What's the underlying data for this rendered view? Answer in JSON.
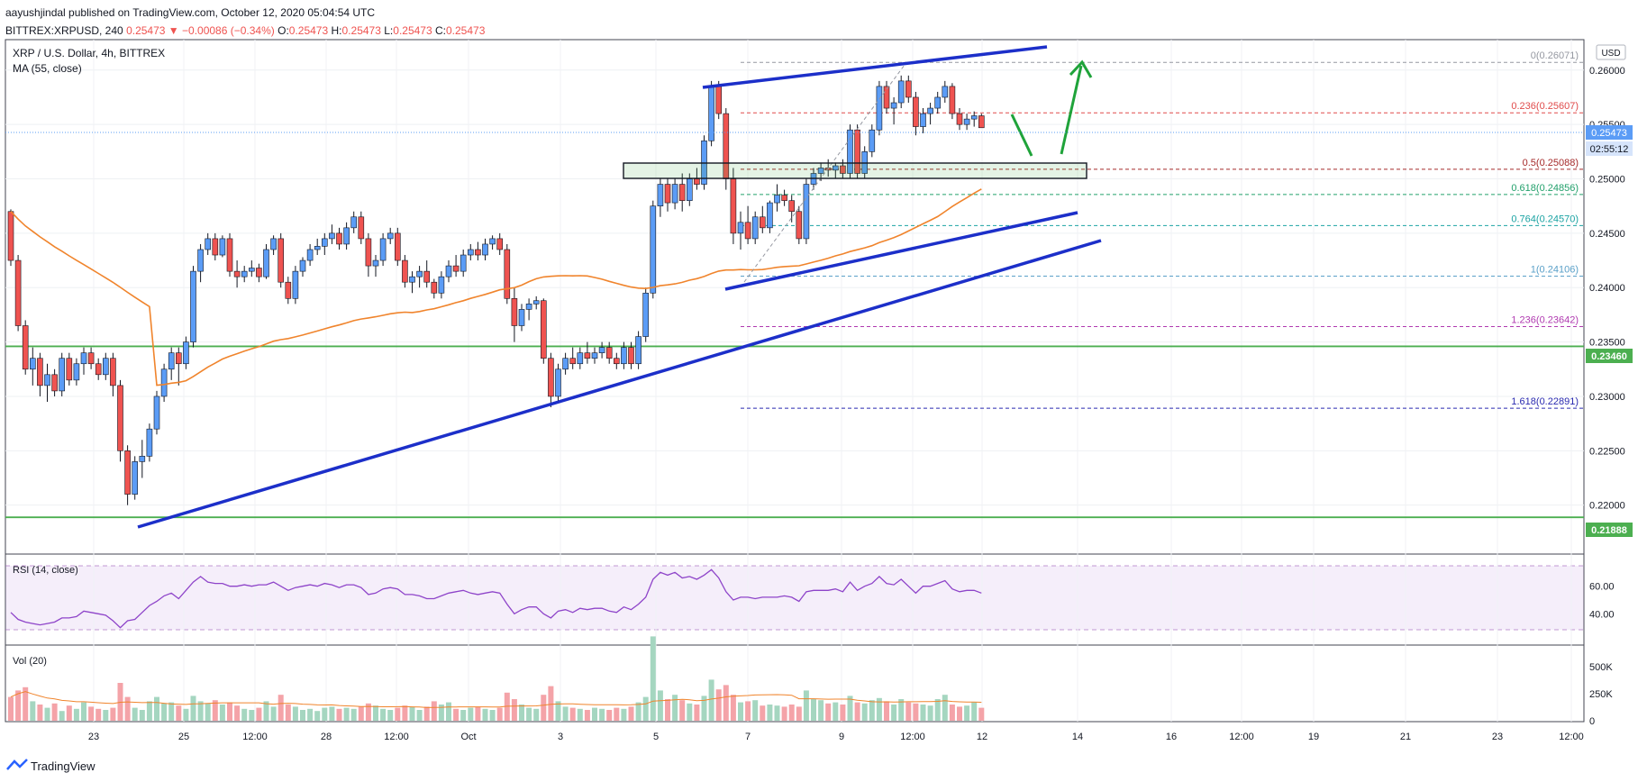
{
  "header": {
    "published_line": "aayushjindal published on TradingView.com, October 12, 2020 05:04:54 UTC",
    "symbol": "BITTREX:XRPUSD, 240",
    "last": "0.25473",
    "change": "▼ −0.00086 (−0.34%)",
    "o_label": "O:",
    "o_value": "0.25473",
    "h_label": "H:",
    "h_value": "0.25473",
    "l_label": "L:",
    "l_value": "0.25473",
    "c_label": "C:",
    "c_value": "0.25473"
  },
  "legend": {
    "title": "XRP / U.S. Dollar, 4h, BITTREX",
    "ma": "MA (55, close)",
    "rsi": "RSI (14, close)",
    "vol": "Vol (20)"
  },
  "axis": {
    "currency": "USD",
    "price_label": "0.25473",
    "countdown": "02:55:12",
    "support_high": "0.23460",
    "support_low": "0.21888"
  },
  "footer": {
    "brand": "TradingView"
  },
  "colors": {
    "up": "#5b9cf6",
    "down": "#ef5350",
    "ma": "#f0842c",
    "trend": "#1c2fc9",
    "support": "#4caf50",
    "arrow": "#1fa33a",
    "rsi": "#8e44c9",
    "vol_up": "#a5d6c0",
    "vol_down": "#f4a3a8"
  },
  "chart_data": {
    "type": "candlestick",
    "price_range": [
      0.2155,
      0.2628
    ],
    "yticks": [
      "0.26000",
      "0.25500",
      "0.25000",
      "0.24500",
      "0.24000",
      "0.23500",
      "0.23000",
      "0.22500",
      "0.22000"
    ],
    "xticks": [
      "23",
      "25",
      "12:00",
      "28",
      "12:00",
      "Oct",
      "3",
      "5",
      "7",
      "9",
      "12:00",
      "12",
      "14",
      "16",
      "12:00",
      "19",
      "21",
      "23",
      "12:00"
    ],
    "rsi_ticks": [
      "60.00",
      "40.00"
    ],
    "vol_ticks": [
      "500K",
      "250K",
      "0"
    ],
    "fib_levels": [
      {
        "label": "0(0.26071)",
        "value": 0.26071,
        "color": "#9598a1"
      },
      {
        "label": "0.236(0.25607)",
        "value": 0.25607,
        "color": "#e04b4b"
      },
      {
        "label": "0.5(0.25088)",
        "value": 0.25088,
        "color": "#a52a2a"
      },
      {
        "label": "0.618(0.24856)",
        "value": 0.24856,
        "color": "#22a06b"
      },
      {
        "label": "0.764(0.24570)",
        "value": 0.2457,
        "color": "#1ba3a3"
      },
      {
        "label": "1(0.24106)",
        "value": 0.24106,
        "color": "#5aa0c8"
      },
      {
        "label": "1.236(0.23642)",
        "value": 0.23642,
        "color": "#b03ab0"
      },
      {
        "label": "1.618(0.22891)",
        "value": 0.22891,
        "color": "#2a2ab0"
      }
    ],
    "support_lines": [
      0.2346,
      0.21888
    ],
    "candles": [
      [
        0.247,
        0.2472,
        0.242,
        0.2425
      ],
      [
        0.2425,
        0.243,
        0.236,
        0.2365
      ],
      [
        0.2365,
        0.237,
        0.232,
        0.2325
      ],
      [
        0.2325,
        0.2345,
        0.231,
        0.2335
      ],
      [
        0.2335,
        0.234,
        0.23,
        0.231
      ],
      [
        0.231,
        0.233,
        0.2295,
        0.232
      ],
      [
        0.232,
        0.2325,
        0.23,
        0.2305
      ],
      [
        0.2305,
        0.234,
        0.23,
        0.2335
      ],
      [
        0.2335,
        0.234,
        0.231,
        0.2315
      ],
      [
        0.2315,
        0.2335,
        0.231,
        0.233
      ],
      [
        0.233,
        0.2345,
        0.232,
        0.234
      ],
      [
        0.234,
        0.2345,
        0.2325,
        0.233
      ],
      [
        0.233,
        0.2335,
        0.2315,
        0.232
      ],
      [
        0.232,
        0.234,
        0.2315,
        0.2335
      ],
      [
        0.2335,
        0.234,
        0.23,
        0.231
      ],
      [
        0.231,
        0.2315,
        0.224,
        0.225
      ],
      [
        0.225,
        0.2255,
        0.22,
        0.221
      ],
      [
        0.221,
        0.2245,
        0.2205,
        0.224
      ],
      [
        0.224,
        0.226,
        0.2225,
        0.2245
      ],
      [
        0.2245,
        0.2275,
        0.224,
        0.227
      ],
      [
        0.227,
        0.2305,
        0.2265,
        0.23
      ],
      [
        0.23,
        0.233,
        0.2295,
        0.2325
      ],
      [
        0.2325,
        0.2345,
        0.2315,
        0.234
      ],
      [
        0.234,
        0.2345,
        0.231,
        0.233
      ],
      [
        0.233,
        0.2355,
        0.2325,
        0.235
      ],
      [
        0.235,
        0.242,
        0.2345,
        0.2415
      ],
      [
        0.2415,
        0.244,
        0.2405,
        0.2435
      ],
      [
        0.2435,
        0.245,
        0.243,
        0.2445
      ],
      [
        0.2445,
        0.245,
        0.2425,
        0.243
      ],
      [
        0.243,
        0.2448,
        0.2428,
        0.2445
      ],
      [
        0.2445,
        0.245,
        0.241,
        0.2415
      ],
      [
        0.2415,
        0.2425,
        0.24,
        0.241
      ],
      [
        0.241,
        0.242,
        0.2405,
        0.2415
      ],
      [
        0.2415,
        0.2425,
        0.241,
        0.2418
      ],
      [
        0.2418,
        0.2422,
        0.2405,
        0.241
      ],
      [
        0.241,
        0.244,
        0.2408,
        0.2435
      ],
      [
        0.2435,
        0.2448,
        0.243,
        0.2445
      ],
      [
        0.2445,
        0.245,
        0.24,
        0.2405
      ],
      [
        0.2405,
        0.241,
        0.2385,
        0.239
      ],
      [
        0.239,
        0.242,
        0.2385,
        0.2415
      ],
      [
        0.2415,
        0.2428,
        0.241,
        0.2425
      ],
      [
        0.2425,
        0.244,
        0.242,
        0.2435
      ],
      [
        0.2435,
        0.2445,
        0.243,
        0.2438
      ],
      [
        0.2438,
        0.245,
        0.243,
        0.2445
      ],
      [
        0.2445,
        0.2458,
        0.244,
        0.245
      ],
      [
        0.245,
        0.2455,
        0.2435,
        0.244
      ],
      [
        0.244,
        0.246,
        0.2435,
        0.2455
      ],
      [
        0.2455,
        0.247,
        0.245,
        0.2465
      ],
      [
        0.2465,
        0.247,
        0.244,
        0.2445
      ],
      [
        0.2445,
        0.245,
        0.241,
        0.242
      ],
      [
        0.242,
        0.243,
        0.241,
        0.2425
      ],
      [
        0.2425,
        0.245,
        0.242,
        0.2445
      ],
      [
        0.2445,
        0.2455,
        0.244,
        0.245
      ],
      [
        0.245,
        0.2455,
        0.242,
        0.2425
      ],
      [
        0.2425,
        0.243,
        0.24,
        0.2405
      ],
      [
        0.2405,
        0.2415,
        0.2395,
        0.241
      ],
      [
        0.241,
        0.242,
        0.24,
        0.2415
      ],
      [
        0.2415,
        0.2425,
        0.24,
        0.2405
      ],
      [
        0.2405,
        0.2408,
        0.239,
        0.2395
      ],
      [
        0.2395,
        0.2415,
        0.239,
        0.241
      ],
      [
        0.241,
        0.2425,
        0.2405,
        0.242
      ],
      [
        0.242,
        0.243,
        0.241,
        0.2415
      ],
      [
        0.2415,
        0.2435,
        0.241,
        0.243
      ],
      [
        0.243,
        0.244,
        0.2425,
        0.2435
      ],
      [
        0.2435,
        0.2442,
        0.2425,
        0.243
      ],
      [
        0.243,
        0.2445,
        0.2425,
        0.244
      ],
      [
        0.244,
        0.2448,
        0.2435,
        0.2445
      ],
      [
        0.2445,
        0.245,
        0.243,
        0.2435
      ],
      [
        0.2435,
        0.244,
        0.2385,
        0.239
      ],
      [
        0.239,
        0.24,
        0.235,
        0.2365
      ],
      [
        0.2365,
        0.2385,
        0.236,
        0.238
      ],
      [
        0.238,
        0.239,
        0.237,
        0.2385
      ],
      [
        0.2385,
        0.2392,
        0.238,
        0.2388
      ],
      [
        0.2388,
        0.239,
        0.233,
        0.2335
      ],
      [
        0.2335,
        0.234,
        0.229,
        0.23
      ],
      [
        0.23,
        0.233,
        0.2295,
        0.2325
      ],
      [
        0.2325,
        0.234,
        0.232,
        0.2335
      ],
      [
        0.2335,
        0.2345,
        0.2325,
        0.233
      ],
      [
        0.233,
        0.2345,
        0.2325,
        0.234
      ],
      [
        0.234,
        0.235,
        0.233,
        0.2335
      ],
      [
        0.2335,
        0.2345,
        0.233,
        0.234
      ],
      [
        0.234,
        0.235,
        0.2335,
        0.2345
      ],
      [
        0.2345,
        0.235,
        0.233,
        0.2335
      ],
      [
        0.2335,
        0.234,
        0.2325,
        0.233
      ],
      [
        0.233,
        0.235,
        0.2325,
        0.2345
      ],
      [
        0.2345,
        0.235,
        0.2325,
        0.233
      ],
      [
        0.233,
        0.236,
        0.2325,
        0.2355
      ],
      [
        0.2355,
        0.24,
        0.235,
        0.2395
      ],
      [
        0.2395,
        0.248,
        0.239,
        0.2475
      ],
      [
        0.2475,
        0.25,
        0.2465,
        0.2495
      ],
      [
        0.2495,
        0.25,
        0.247,
        0.2478
      ],
      [
        0.2478,
        0.25,
        0.2472,
        0.2495
      ],
      [
        0.2495,
        0.2505,
        0.247,
        0.248
      ],
      [
        0.248,
        0.2505,
        0.2475,
        0.25
      ],
      [
        0.25,
        0.251,
        0.249,
        0.2495
      ],
      [
        0.2495,
        0.254,
        0.249,
        0.2535
      ],
      [
        0.2535,
        0.259,
        0.253,
        0.2585
      ],
      [
        0.2585,
        0.259,
        0.2555,
        0.256
      ],
      [
        0.256,
        0.2565,
        0.249,
        0.25
      ],
      [
        0.25,
        0.251,
        0.244,
        0.245
      ],
      [
        0.245,
        0.247,
        0.2435,
        0.246
      ],
      [
        0.246,
        0.2475,
        0.244,
        0.2445
      ],
      [
        0.2445,
        0.247,
        0.244,
        0.2465
      ],
      [
        0.2465,
        0.2475,
        0.245,
        0.2455
      ],
      [
        0.2455,
        0.248,
        0.245,
        0.2478
      ],
      [
        0.2478,
        0.2495,
        0.247,
        0.2485
      ],
      [
        0.2485,
        0.249,
        0.2475,
        0.248
      ],
      [
        0.248,
        0.2485,
        0.246,
        0.247
      ],
      [
        0.247,
        0.2475,
        0.244,
        0.2445
      ],
      [
        0.2445,
        0.25,
        0.244,
        0.2495
      ],
      [
        0.2495,
        0.251,
        0.249,
        0.2505
      ],
      [
        0.2505,
        0.2515,
        0.2498,
        0.251
      ],
      [
        0.251,
        0.2518,
        0.2502,
        0.2508
      ],
      [
        0.2508,
        0.2515,
        0.25,
        0.2512
      ],
      [
        0.2512,
        0.2518,
        0.25,
        0.2505
      ],
      [
        0.2505,
        0.255,
        0.25,
        0.2545
      ],
      [
        0.2545,
        0.255,
        0.25,
        0.2505
      ],
      [
        0.2505,
        0.253,
        0.25,
        0.2525
      ],
      [
        0.2525,
        0.255,
        0.252,
        0.2545
      ],
      [
        0.2545,
        0.259,
        0.254,
        0.2585
      ],
      [
        0.2585,
        0.259,
        0.256,
        0.2565
      ],
      [
        0.2565,
        0.2575,
        0.255,
        0.257
      ],
      [
        0.257,
        0.2595,
        0.2565,
        0.259
      ],
      [
        0.259,
        0.2595,
        0.257,
        0.2575
      ],
      [
        0.2575,
        0.258,
        0.254,
        0.2548
      ],
      [
        0.2548,
        0.2565,
        0.2542,
        0.256
      ],
      [
        0.256,
        0.257,
        0.255,
        0.2565
      ],
      [
        0.2565,
        0.258,
        0.256,
        0.2575
      ],
      [
        0.2575,
        0.259,
        0.257,
        0.2585
      ],
      [
        0.2585,
        0.2588,
        0.2555,
        0.256
      ],
      [
        0.256,
        0.2565,
        0.2545,
        0.255
      ],
      [
        0.255,
        0.256,
        0.2545,
        0.2555
      ],
      [
        0.2555,
        0.2562,
        0.2548,
        0.2558
      ],
      [
        0.2558,
        0.256,
        0.2547,
        0.2547
      ]
    ],
    "rsi": [
      41,
      36,
      34,
      33,
      32,
      33,
      34,
      37,
      37,
      38,
      42,
      41,
      40,
      39,
      35,
      30,
      35,
      36,
      41,
      46,
      49,
      53,
      55,
      51,
      57,
      63,
      67,
      63,
      62,
      62,
      60,
      60,
      61,
      60,
      61,
      61,
      63,
      60,
      57,
      59,
      60,
      61,
      60,
      62,
      61,
      59,
      61,
      61,
      59,
      54,
      55,
      58,
      59,
      58,
      54,
      54,
      53,
      51,
      51,
      53,
      55,
      56,
      57,
      55,
      54,
      55,
      56,
      55,
      47,
      40,
      43,
      45,
      45,
      40,
      37,
      42,
      43,
      41,
      44,
      43,
      44,
      44,
      42,
      41,
      45,
      43,
      47,
      52,
      65,
      70,
      68,
      70,
      66,
      67,
      65,
      68,
      72,
      66,
      56,
      50,
      52,
      52,
      51,
      52,
      52,
      52,
      53,
      52,
      49,
      56,
      57,
      57,
      57,
      58,
      56,
      63,
      57,
      60,
      62,
      67,
      62,
      61,
      65,
      60,
      55,
      60,
      60,
      62,
      64,
      58,
      56,
      57,
      57,
      55
    ],
    "volume": [
      220,
      280,
      310,
      180,
      150,
      120,
      160,
      90,
      140,
      110,
      170,
      130,
      110,
      100,
      120,
      350,
      220,
      120,
      100,
      180,
      220,
      160,
      170,
      140,
      110,
      230,
      180,
      160,
      190,
      150,
      170,
      140,
      110,
      100,
      120,
      180,
      130,
      240,
      150,
      130,
      100,
      110,
      90,
      120,
      130,
      110,
      120,
      110,
      130,
      160,
      140,
      110,
      100,
      120,
      140,
      130,
      100,
      130,
      180,
      150,
      170,
      110,
      100,
      120,
      130,
      110,
      100,
      120,
      260,
      200,
      150,
      120,
      110,
      240,
      320,
      180,
      130,
      120,
      110,
      100,
      120,
      110,
      100,
      120,
      110,
      130,
      170,
      220,
      780,
      280,
      200,
      240,
      190,
      160,
      150,
      230,
      380,
      290,
      330,
      240,
      170,
      180,
      190,
      140,
      150,
      140,
      130,
      150,
      130,
      280,
      200,
      190,
      160,
      170,
      150,
      230,
      170,
      160,
      190,
      210,
      180,
      150,
      200,
      170,
      160,
      150,
      140,
      200,
      240,
      150,
      130,
      140,
      170,
      120
    ]
  }
}
